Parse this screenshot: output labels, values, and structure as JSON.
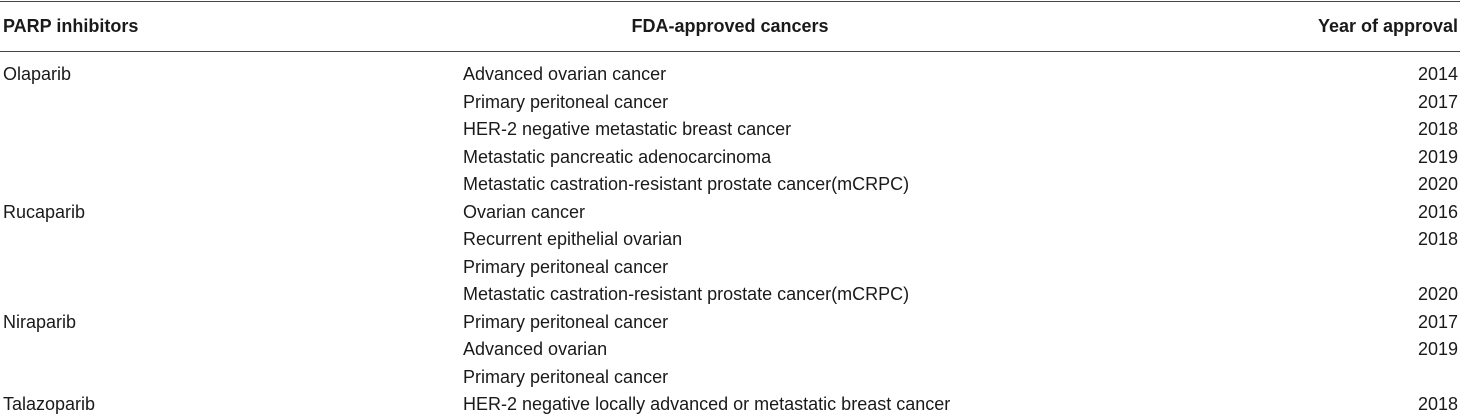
{
  "table": {
    "headers": {
      "inhibitor": "PARP inhibitors",
      "cancers": "FDA-approved cancers",
      "year": "Year of approval"
    },
    "rows": [
      {
        "inhibitor": "Olaparib",
        "cancer": "Advanced ovarian cancer",
        "year": "2014"
      },
      {
        "inhibitor": "",
        "cancer": "Primary peritoneal cancer",
        "year": "2017"
      },
      {
        "inhibitor": "",
        "cancer": "HER-2 negative metastatic breast cancer",
        "year": "2018"
      },
      {
        "inhibitor": "",
        "cancer": "Metastatic pancreatic adenocarcinoma",
        "year": "2019"
      },
      {
        "inhibitor": "",
        "cancer": "Metastatic castration-resistant prostate cancer(mCRPC)",
        "year": "2020"
      },
      {
        "inhibitor": "Rucaparib",
        "cancer": "Ovarian cancer",
        "year": "2016"
      },
      {
        "inhibitor": "",
        "cancer": "Recurrent epithelial ovarian",
        "year": "2018"
      },
      {
        "inhibitor": "",
        "cancer": "Primary peritoneal cancer",
        "year": ""
      },
      {
        "inhibitor": "",
        "cancer": "Metastatic castration-resistant prostate cancer(mCRPC)",
        "year": "2020"
      },
      {
        "inhibitor": "Niraparib",
        "cancer": "Primary peritoneal cancer",
        "year": "2017"
      },
      {
        "inhibitor": "",
        "cancer": "Advanced ovarian",
        "year": "2019"
      },
      {
        "inhibitor": "",
        "cancer": "Primary peritoneal cancer",
        "year": ""
      },
      {
        "inhibitor": "Talazoparib",
        "cancer": "HER-2 negative locally advanced or metastatic breast cancer",
        "year": "2018"
      }
    ]
  }
}
